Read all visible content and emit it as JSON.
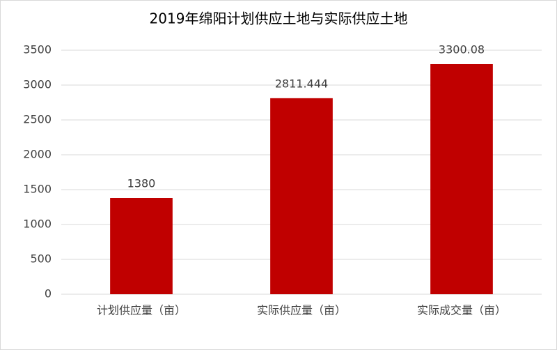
{
  "chart_data": {
    "type": "bar",
    "title": "2019年绵阳计划供应土地与实际供应土地",
    "categories": [
      "计划供应量（亩）",
      "实际供应量（亩）",
      "实际成交量（亩）"
    ],
    "values": [
      1380,
      2811.444,
      3300.08
    ],
    "color": "#c00000",
    "ylim": [
      0,
      3500
    ],
    "yticks": [
      0,
      500,
      1000,
      1500,
      2000,
      2500,
      3000,
      3500
    ],
    "grid": true
  }
}
